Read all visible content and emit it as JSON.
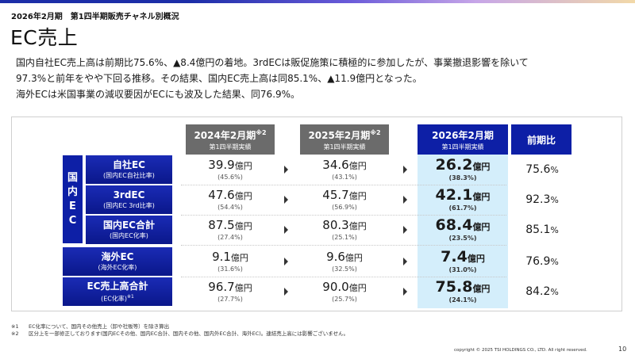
{
  "header": {
    "period": "2026年2月期　第1四半期販売チャネル別概況",
    "title": "EC売上"
  },
  "intro": [
    "国内自社EC売上高は前期比75.6%、▲8.4億円の着地。3rdECは販促施策に積極的に参加したが、事業撤退影響を除いて",
    "97.3%と前年をやや下回る推移。その結果、国内EC売上高は同85.1%、▲11.9億円となった。",
    "海外ECは米国事業の減収要因がECにも波及した結果、同76.9%。"
  ],
  "columns": [
    {
      "label": "2024年2月期",
      "mark": "※2",
      "sub": "第1四半期実績"
    },
    {
      "label": "2025年2月期",
      "mark": "※2",
      "sub": "第1四半期実績"
    },
    {
      "label": "2026年2月期",
      "mark": "",
      "sub": "第1四半期実績"
    },
    {
      "label": "前期比",
      "mark": "",
      "sub": ""
    }
  ],
  "domestic_label": [
    "国",
    "内",
    "E",
    "C"
  ],
  "unit": "億円",
  "rows": [
    {
      "label": "自社EC",
      "sub": "(国内EC自社比率)",
      "sub_mark": "",
      "v2024": "39.9",
      "p2024": "(45.6%)",
      "v2025": "34.6",
      "p2025": "(43.1%)",
      "v2026": "26.2",
      "p2026": "(38.3%)",
      "yoy": "75.6"
    },
    {
      "label": "3rdEC",
      "sub": "(国内EC 3rd比率)",
      "sub_mark": "",
      "v2024": "47.6",
      "p2024": "(54.4%)",
      "v2025": "45.7",
      "p2025": "(56.9%)",
      "v2026": "42.1",
      "p2026": "(61.7%)",
      "yoy": "92.3"
    },
    {
      "label": "国内EC合計",
      "sub": "(国内EC化率)",
      "sub_mark": "",
      "v2024": "87.5",
      "p2024": "(27.4%)",
      "v2025": "80.3",
      "p2025": "(25.1%)",
      "v2026": "68.4",
      "p2026": "(23.5%)",
      "yoy": "85.1"
    },
    {
      "label": "海外EC",
      "sub": "(海外EC化率)",
      "sub_mark": "",
      "v2024": "9.1",
      "p2024": "(31.6%)",
      "v2025": "9.6",
      "p2025": "(32.5%)",
      "v2026": "7.4",
      "p2026": "(31.0%)",
      "yoy": "76.9"
    },
    {
      "label": "EC売上高合計",
      "sub": "(EC化率)",
      "sub_mark": "※1",
      "v2024": "96.7",
      "p2024": "(27.7%)",
      "v2025": "90.0",
      "p2025": "(25.7%)",
      "v2026": "75.8",
      "p2026": "(24.1%)",
      "yoy": "84.2"
    }
  ],
  "yoy_unit": "%",
  "notes": [
    {
      "mark": "※1",
      "text": "EC化率について、国内その他売上（卸や社販等）を除き算出"
    },
    {
      "mark": "※2",
      "text": "区分上を一部修正しております(国内ECその他、国内EC合計、国内その他、国内外EC合計、海外EC)。連結売上高には影響ございません。"
    }
  ],
  "footer": {
    "copyright": "copyright © 2025 TSI HOLDINGS CO., LTD. All right reserved.",
    "page": "10"
  }
}
